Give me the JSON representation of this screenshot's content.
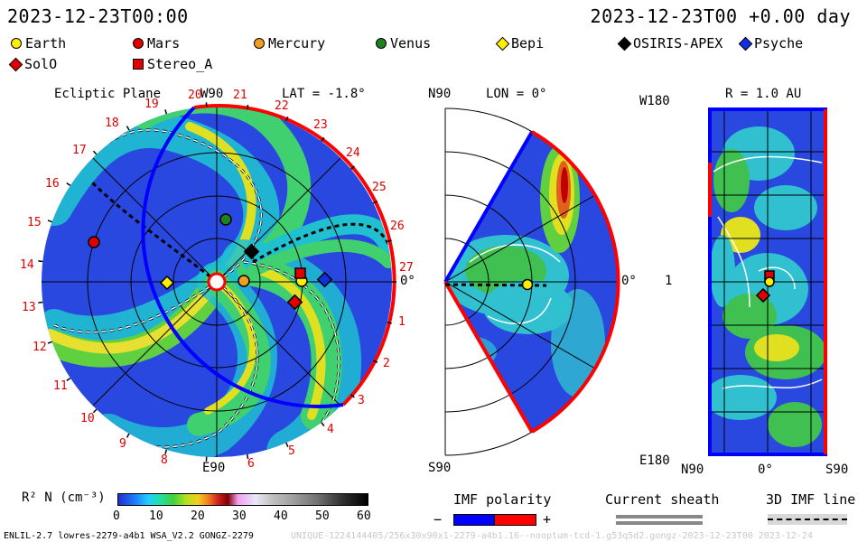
{
  "header": {
    "left_timestamp": "2023-12-23T00:00",
    "right_timestamp": "2023-12-23T00 +0.00 day"
  },
  "legend": [
    {
      "label": "Earth",
      "shape": "circle",
      "color": "#ffee00"
    },
    {
      "label": "Mars",
      "shape": "circle",
      "color": "#e00000"
    },
    {
      "label": "Mercury",
      "shape": "circle",
      "color": "#f0a020"
    },
    {
      "label": "Venus",
      "shape": "circle",
      "color": "#208020"
    },
    {
      "label": "Bepi",
      "shape": "diamond",
      "color": "#ffee00"
    },
    {
      "label": "OSIRIS-APEX",
      "shape": "diamond",
      "color": "#000000"
    },
    {
      "label": "Psyche",
      "shape": "diamond",
      "color": "#1030e0"
    },
    {
      "label": "SolO",
      "shape": "diamond",
      "color": "#e00000"
    },
    {
      "label": "Stereo_A",
      "shape": "square",
      "color": "#e00000"
    }
  ],
  "panel_ecliptic": {
    "title": "Ecliptic Plane",
    "lat_label": "LAT = -1.8°",
    "top_label": "W90",
    "bottom_label": "E90",
    "right_label": "0°",
    "carrington_labels": [
      "20",
      "21",
      "22",
      "23",
      "24",
      "25",
      "26",
      "27",
      "1",
      "2",
      "3",
      "4",
      "5",
      "6",
      "8",
      "9",
      "10",
      "11",
      "12",
      "13",
      "14",
      "15",
      "16",
      "17",
      "18",
      "19"
    ]
  },
  "panel_meridional": {
    "top_label": "N90",
    "lon_label": "LON = 0°",
    "bottom_label": "S90",
    "right_label": "0°"
  },
  "panel_radial": {
    "top_left_label": "W180",
    "r_label": "R = 1.0 AU",
    "mid_left_label": "1",
    "bottom_left_label": "E180",
    "x_labels": [
      "N90",
      "0°",
      "S90"
    ]
  },
  "colorbar": {
    "title": "R² N (cm⁻³)",
    "ticks": [
      "0",
      "10",
      "20",
      "30",
      "40",
      "50",
      "60"
    ]
  },
  "imf_polarity": {
    "title": "IMF polarity",
    "minus": "−",
    "plus": "+"
  },
  "current_sheath": {
    "title": "Current sheath"
  },
  "imf_line": {
    "title": "3D IMF line"
  },
  "footer": {
    "left": "ENLIL-2.7 lowres-2279-a4b1 WSA_V2.2 GONGZ-2279",
    "right": "UNIQUE-1224144405/256x30x90x1-2279-a4b1.16--nooptum-tcd-1.g53q5d2.gongz-2023-12-23T00   2023-12-24"
  },
  "colors": {
    "background_blue": "#2848e0",
    "polarity_negative": "#0000ff",
    "polarity_positive": "#ff0000"
  }
}
